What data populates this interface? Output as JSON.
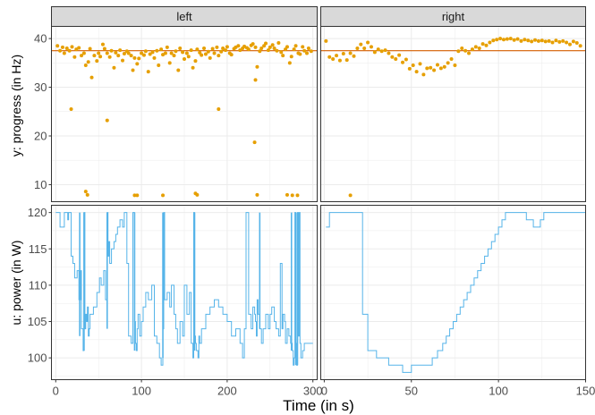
{
  "chart_data": {
    "type": "scatter+step (faceted)",
    "facets": [
      "left",
      "right"
    ],
    "xlabel": "Time (in s)",
    "colors": {
      "progress_points": "#E69F00",
      "power_line": "#56B4E9",
      "reference_line": "#D55E00"
    },
    "panels": {
      "left": {
        "xlim": [
          -5,
          305
        ],
        "xticks": [
          0,
          100,
          200,
          300
        ]
      },
      "right": {
        "xlim": [
          -2,
          150
        ],
        "xticks": [
          0,
          50,
          100,
          150
        ]
      }
    },
    "rows": [
      {
        "id": "progress",
        "type": "scatter",
        "ylabel": "y: progress (in Hz)",
        "ylim": [
          6.5,
          42.5
        ],
        "yticks": [
          10,
          20,
          30,
          40
        ],
        "reference_y": 37.5,
        "left": {
          "x": [
            2,
            5,
            8,
            10,
            13,
            16,
            19,
            22,
            24,
            27,
            30,
            33,
            35,
            38,
            40,
            42,
            45,
            48,
            50,
            52,
            55,
            57,
            60,
            63,
            65,
            68,
            70,
            73,
            75,
            78,
            80,
            83,
            85,
            88,
            90,
            92,
            95,
            97,
            100,
            103,
            105,
            108,
            110,
            113,
            115,
            118,
            120,
            123,
            125,
            128,
            130,
            133,
            135,
            138,
            140,
            143,
            145,
            148,
            150,
            153,
            155,
            158,
            160,
            163,
            165,
            168,
            170,
            173,
            175,
            178,
            180,
            183,
            185,
            188,
            190,
            193,
            195,
            198,
            200,
            203,
            205,
            208,
            210,
            213,
            215,
            218,
            220,
            223,
            225,
            228,
            230,
            233,
            235,
            238,
            240,
            243,
            245,
            248,
            250,
            253,
            255,
            258,
            260,
            263,
            265,
            268,
            270,
            273,
            275,
            278,
            280,
            283,
            285,
            288,
            290,
            293,
            295,
            298,
            18,
            60,
            35,
            37,
            92,
            95,
            125,
            163,
            165,
            190,
            232,
            235,
            270,
            276,
            282
          ],
          "y": [
            38.5,
            37.5,
            38.2,
            37.0,
            38.0,
            37.5,
            38.3,
            36.2,
            37.8,
            38.1,
            36.5,
            37.0,
            34.5,
            35.2,
            37.9,
            32.0,
            36.5,
            35.4,
            37.0,
            36.3,
            38.8,
            37.9,
            37.0,
            36.2,
            37.5,
            34.0,
            37.1,
            36.5,
            37.6,
            35.5,
            36.9,
            37.4,
            37.0,
            36.5,
            33.5,
            36.0,
            34.8,
            35.9,
            37.0,
            36.6,
            37.4,
            33.2,
            36.8,
            37.2,
            36.0,
            37.5,
            34.5,
            37.8,
            36.7,
            37.0,
            38.2,
            35.0,
            37.0,
            36.5,
            37.4,
            33.5,
            38.0,
            37.2,
            35.8,
            37.0,
            36.3,
            37.6,
            34.0,
            35.4,
            37.8,
            37.1,
            36.6,
            38.0,
            36.8,
            37.3,
            36.0,
            37.9,
            37.0,
            38.2,
            36.5,
            37.3,
            38.0,
            37.6,
            38.3,
            37.0,
            36.7,
            37.9,
            38.2,
            38.5,
            37.6,
            38.0,
            38.4,
            38.1,
            37.8,
            38.6,
            38.9,
            38.2,
            34.2,
            37.4,
            38.0,
            38.5,
            39.0,
            37.6,
            38.2,
            38.7,
            38.0,
            37.5,
            39.1,
            37.2,
            36.5,
            37.8,
            38.3,
            35.0,
            36.3,
            37.8,
            38.5,
            37.0,
            36.8,
            38.3,
            37.5,
            37.0,
            38.0,
            37.4,
            25.5,
            23.2,
            8.6,
            7.9,
            7.8,
            7.8,
            7.8,
            8.2,
            7.9,
            25.5,
            18.7,
            7.9,
            7.9,
            7.8,
            7.8
          ],
          "x2": [
            233
          ],
          "y2": [
            31.5
          ]
        },
        "right": {
          "x": [
            1,
            3,
            5,
            7,
            9,
            11,
            13,
            15,
            17,
            19,
            21,
            23,
            25,
            27,
            29,
            31,
            33,
            35,
            37,
            39,
            41,
            43,
            45,
            47,
            49,
            51,
            53,
            55,
            57,
            59,
            61,
            63,
            65,
            67,
            69,
            71,
            73,
            75,
            77,
            79,
            81,
            83,
            85,
            87,
            89,
            91,
            93,
            95,
            97,
            99,
            101,
            103,
            105,
            107,
            109,
            111,
            113,
            115,
            117,
            119,
            121,
            123,
            125,
            127,
            129,
            131,
            133,
            135,
            137,
            139,
            141,
            143,
            145,
            147,
            15
          ],
          "y": [
            39.5,
            36.2,
            35.8,
            36.5,
            35.5,
            36.9,
            35.6,
            37.0,
            36.4,
            38.0,
            38.8,
            38.0,
            39.2,
            38.3,
            37.2,
            37.8,
            37.4,
            37.6,
            37.0,
            36.2,
            35.8,
            36.6,
            35.1,
            35.7,
            33.8,
            34.5,
            33.2,
            34.8,
            32.6,
            33.9,
            34.0,
            33.5,
            34.6,
            33.9,
            34.2,
            35.0,
            35.8,
            34.5,
            37.4,
            38.0,
            37.5,
            37.0,
            37.8,
            38.3,
            38.0,
            38.9,
            38.6,
            39.2,
            39.6,
            39.8,
            40.0,
            39.8,
            39.9,
            40.0,
            39.7,
            39.9,
            39.5,
            39.8,
            39.6,
            39.4,
            39.7,
            39.5,
            39.6,
            39.4,
            39.5,
            39.2,
            39.6,
            39.3,
            39.5,
            39.2,
            38.8,
            39.4,
            39.1,
            38.5,
            7.8
          ]
        }
      },
      {
        "id": "power",
        "type": "step",
        "ylabel": "u: power (in W)",
        "ylim": [
          97,
          121
        ],
        "yticks": [
          100,
          105,
          110,
          115,
          120
        ],
        "left": {
          "x": [
            0,
            5,
            10,
            14,
            15,
            18,
            20,
            22,
            25,
            27,
            29,
            30,
            32,
            33,
            34,
            35,
            36,
            37,
            38,
            39,
            40,
            44,
            48,
            51,
            53,
            56,
            58,
            60,
            61,
            62,
            63,
            65,
            68,
            70,
            72,
            75,
            78,
            80,
            83,
            85,
            88,
            90,
            92,
            93,
            94,
            95,
            96,
            98,
            100,
            102,
            105,
            108,
            112,
            115,
            118,
            121,
            123,
            125,
            126,
            127,
            130,
            133,
            135,
            138,
            140,
            142,
            145,
            148,
            150,
            153,
            156,
            158,
            160,
            161,
            162,
            163,
            164,
            166,
            167,
            168,
            170,
            175,
            180,
            185,
            190,
            195,
            200,
            205,
            210,
            215,
            218,
            220,
            222,
            225,
            228,
            230,
            232,
            233,
            234,
            235,
            236,
            238,
            240,
            242,
            245,
            248,
            250,
            252,
            255,
            257,
            260,
            262,
            264,
            265,
            267,
            268,
            270,
            272,
            274,
            276,
            277,
            278,
            279,
            280,
            281,
            282,
            283,
            284,
            285,
            286,
            288,
            290,
            292,
            295,
            300
          ],
          "y": [
            120,
            118,
            120,
            119,
            120,
            114,
            113,
            111,
            112,
            108,
            112,
            104,
            101,
            120,
            104,
            106,
            105,
            107,
            103,
            104,
            106,
            107,
            109,
            111,
            110,
            112,
            108,
            120,
            114,
            116,
            113,
            115,
            116,
            117,
            118,
            119,
            118,
            120,
            113,
            103,
            102,
            120,
            105,
            102,
            101,
            104,
            106,
            103,
            105,
            107,
            109,
            108,
            110,
            103,
            102,
            100,
            99,
            104,
            120,
            108,
            109,
            107,
            110,
            106,
            104,
            102,
            105,
            103,
            110,
            106,
            109,
            102,
            100,
            120,
            103,
            102,
            101,
            100,
            103,
            102,
            104,
            106,
            107,
            108,
            107,
            106,
            105,
            103,
            104,
            102,
            100,
            104,
            120,
            106,
            104,
            107,
            106,
            105,
            103,
            108,
            106,
            104,
            102,
            104,
            106,
            104,
            106,
            107,
            105,
            104,
            103,
            113,
            104,
            106,
            105,
            102,
            104,
            103,
            102,
            101,
            99,
            100,
            120,
            102,
            99,
            120,
            103,
            120,
            102,
            100,
            101,
            102,
            102,
            102,
            102
          ],
          "fill_bars": [
            [
              28,
              120,
              103
            ],
            [
              33,
              120,
              101
            ],
            [
              60,
              120,
              104
            ],
            [
              92,
              120,
              101
            ],
            [
              125,
              120,
              100
            ],
            [
              162,
              120,
              101
            ],
            [
              238,
              120,
              104
            ],
            [
              275,
              120,
              101
            ],
            [
              280,
              120,
              99
            ],
            [
              282,
              120,
              99
            ]
          ]
        },
        "right": {
          "x": [
            1,
            3,
            20,
            22,
            25,
            30,
            35,
            37,
            40,
            45,
            50,
            55,
            60,
            62,
            65,
            68,
            70,
            72,
            74,
            76,
            78,
            80,
            82,
            84,
            86,
            88,
            90,
            92,
            94,
            96,
            98,
            100,
            102,
            104,
            106,
            108,
            110,
            112,
            114,
            116,
            120,
            124,
            126,
            128,
            130,
            135,
            140,
            145,
            150
          ],
          "y": [
            118,
            120,
            120,
            106,
            101,
            100,
            100,
            99,
            99,
            98,
            99,
            99,
            99,
            100,
            101,
            102,
            103,
            104,
            105,
            106,
            107,
            108,
            109,
            110,
            111,
            112,
            113,
            114,
            115,
            116,
            117,
            118,
            119,
            120,
            120,
            120,
            120,
            120,
            120,
            119,
            118,
            119,
            120,
            120,
            120,
            120,
            120,
            120,
            120
          ]
        }
      }
    ]
  }
}
